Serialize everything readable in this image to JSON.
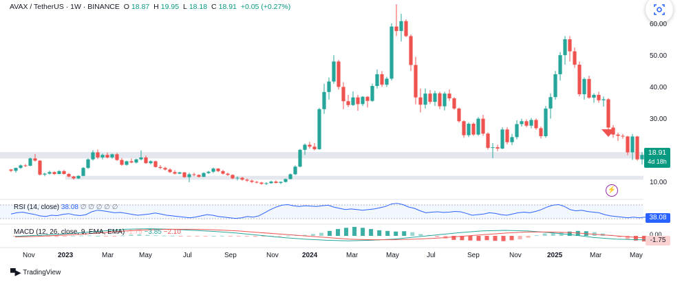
{
  "legend": {
    "symbol": "AVAX / TetherUS · 1W · BINANCE",
    "open_label": "O",
    "open": "18.87",
    "high_label": "H",
    "high": "19.95",
    "low_label": "L",
    "low": "18.18",
    "close_label": "C",
    "close": "18.91",
    "change": "+0.05 (+0.27%)"
  },
  "price_axis": [
    "60.00",
    "50.00",
    "40.00",
    "30.00",
    "10.00"
  ],
  "last_price": {
    "value": "18.91",
    "countdown": "4d 18h"
  },
  "rsi": {
    "title": "RSI (14, close)",
    "value": "38.08",
    "extra": "∅ ∅ ∅ ∅ ∅",
    "tag": "38.08"
  },
  "macd": {
    "title": "MACD (12, 26, close, 9, EMA, EMA)",
    "hist": "-1.75",
    "macd": "−3.85",
    "signal": "−2.10",
    "tag": "-1.75",
    "axis": "0.00"
  },
  "time_axis": [
    "Nov",
    "2023",
    "Mar",
    "May",
    "Jul",
    "Sep",
    "Nov",
    "2024",
    "Mar",
    "May",
    "Jul",
    "Sep",
    "Nov",
    "2025",
    "Mar",
    "May"
  ],
  "branding": "TradingView",
  "colors": {
    "up": "#26a69a",
    "down": "#ef5350",
    "rsi": "#2962ff",
    "zone": "#e0e3eb",
    "arrow": "#ef5350"
  },
  "chart_data": {
    "type": "candlestick",
    "symbol": "AVAX / TetherUS",
    "interval": "1W",
    "ylim": [
      5,
      67
    ],
    "support_zone": [
      17.5,
      19.5
    ],
    "lower_zone": [
      10.8,
      12.0
    ],
    "weeks": [
      [
        14.0,
        14.2,
        13.2,
        13.6
      ],
      [
        13.6,
        14.6,
        13.0,
        14.5
      ],
      [
        14.5,
        15.6,
        14.2,
        15.3
      ],
      [
        15.3,
        15.7,
        14.8,
        15.2
      ],
      [
        15.2,
        17.8,
        15.0,
        17.5
      ],
      [
        17.5,
        18.9,
        16.5,
        16.8
      ],
      [
        16.8,
        17.0,
        12.1,
        12.4
      ],
      [
        12.4,
        13.0,
        11.9,
        12.7
      ],
      [
        12.7,
        13.6,
        12.4,
        13.2
      ],
      [
        13.2,
        13.4,
        12.3,
        12.6
      ],
      [
        12.6,
        13.8,
        12.5,
        13.5
      ],
      [
        13.5,
        13.9,
        12.4,
        12.6
      ],
      [
        12.6,
        12.9,
        11.5,
        11.8
      ],
      [
        11.8,
        12.0,
        10.8,
        11.2
      ],
      [
        11.2,
        12.2,
        11.0,
        12.0
      ],
      [
        12.0,
        14.8,
        11.9,
        14.5
      ],
      [
        14.5,
        17.5,
        14.2,
        17.2
      ],
      [
        17.2,
        20.1,
        16.8,
        19.4
      ],
      [
        19.4,
        20.3,
        17.3,
        17.8
      ],
      [
        17.8,
        19.0,
        17.2,
        18.6
      ],
      [
        18.6,
        19.3,
        17.5,
        17.8
      ],
      [
        17.8,
        19.0,
        17.4,
        18.8
      ],
      [
        18.8,
        19.2,
        16.7,
        17.0
      ],
      [
        17.0,
        17.6,
        15.2,
        15.5
      ],
      [
        15.5,
        16.8,
        15.2,
        16.6
      ],
      [
        16.6,
        17.5,
        16.0,
        16.2
      ],
      [
        16.2,
        17.4,
        15.9,
        17.2
      ],
      [
        17.2,
        20.0,
        16.9,
        17.8
      ],
      [
        17.8,
        18.4,
        15.8,
        16.0
      ],
      [
        16.0,
        16.9,
        15.6,
        16.6
      ],
      [
        16.6,
        16.8,
        14.6,
        14.8
      ],
      [
        14.8,
        15.4,
        14.1,
        14.5
      ],
      [
        14.5,
        14.9,
        13.7,
        14.0
      ],
      [
        14.0,
        14.4,
        12.9,
        13.2
      ],
      [
        13.2,
        13.8,
        12.4,
        12.7
      ],
      [
        12.7,
        13.3,
        12.5,
        13.1
      ],
      [
        13.1,
        13.2,
        11.4,
        11.6
      ],
      [
        11.6,
        13.0,
        10.0,
        12.5
      ],
      [
        12.5,
        13.0,
        11.9,
        12.3
      ],
      [
        12.3,
        12.5,
        11.5,
        11.7
      ],
      [
        11.7,
        13.1,
        11.6,
        12.9
      ],
      [
        12.9,
        13.6,
        12.6,
        13.3
      ],
      [
        13.3,
        14.6,
        12.9,
        14.3
      ],
      [
        14.3,
        14.4,
        13.2,
        13.5
      ],
      [
        13.5,
        13.9,
        12.4,
        12.7
      ],
      [
        12.7,
        13.0,
        12.0,
        12.3
      ],
      [
        12.3,
        12.5,
        11.0,
        11.2
      ],
      [
        11.2,
        11.8,
        10.6,
        11.4
      ],
      [
        11.4,
        11.7,
        10.5,
        10.8
      ],
      [
        10.8,
        11.2,
        10.1,
        10.5
      ],
      [
        10.5,
        10.8,
        9.7,
        10.1
      ],
      [
        10.1,
        10.4,
        9.6,
        9.9
      ],
      [
        9.9,
        10.1,
        9.2,
        9.5
      ],
      [
        9.5,
        10.0,
        9.1,
        9.7
      ],
      [
        9.7,
        10.5,
        9.5,
        10.2
      ],
      [
        10.2,
        10.6,
        9.6,
        9.8
      ],
      [
        9.8,
        10.3,
        9.4,
        10.1
      ],
      [
        10.1,
        11.2,
        9.9,
        11.0
      ],
      [
        11.0,
        12.8,
        10.9,
        12.5
      ],
      [
        12.5,
        15.3,
        12.3,
        14.9
      ],
      [
        14.9,
        20.5,
        14.7,
        20.2
      ],
      [
        20.2,
        22.2,
        18.6,
        21.8
      ],
      [
        21.8,
        22.7,
        20.6,
        21.2
      ],
      [
        21.2,
        22.3,
        20.0,
        20.4
      ],
      [
        20.4,
        33.4,
        20.2,
        33.0
      ],
      [
        33.0,
        41.0,
        31.5,
        38.4
      ],
      [
        38.4,
        43.0,
        36.0,
        41.7
      ],
      [
        41.7,
        50.0,
        41.0,
        48.0
      ],
      [
        48.0,
        48.5,
        39.2,
        40.0
      ],
      [
        40.0,
        41.5,
        33.0,
        35.5
      ],
      [
        35.5,
        37.5,
        33.6,
        34.3
      ],
      [
        34.3,
        38.6,
        34.0,
        36.7
      ],
      [
        36.7,
        37.5,
        32.5,
        34.6
      ],
      [
        34.6,
        37.1,
        34.0,
        36.9
      ],
      [
        36.9,
        37.1,
        33.5,
        35.6
      ],
      [
        35.6,
        41.0,
        35.3,
        40.3
      ],
      [
        40.3,
        45.5,
        39.5,
        44.0
      ],
      [
        44.0,
        45.0,
        40.0,
        40.7
      ],
      [
        40.7,
        43.2,
        40.0,
        42.6
      ],
      [
        42.6,
        60.0,
        42.0,
        59.0
      ],
      [
        59.0,
        66.0,
        56.0,
        57.6
      ],
      [
        57.6,
        63.0,
        54.3,
        60.7
      ],
      [
        60.7,
        61.3,
        55.7,
        56.0
      ],
      [
        56.0,
        56.5,
        45.0,
        46.9
      ],
      [
        46.9,
        49.5,
        34.5,
        36.7
      ],
      [
        36.7,
        39.5,
        32.0,
        34.4
      ],
      [
        34.4,
        39.5,
        33.2,
        37.9
      ],
      [
        37.9,
        39.0,
        34.6,
        35.3
      ],
      [
        35.3,
        38.8,
        34.0,
        38.0
      ],
      [
        38.0,
        38.5,
        33.0,
        33.9
      ],
      [
        33.9,
        38.5,
        32.6,
        37.9
      ],
      [
        37.9,
        39.2,
        35.6,
        36.4
      ],
      [
        36.4,
        36.8,
        32.8,
        33.2
      ],
      [
        33.2,
        33.5,
        28.8,
        29.2
      ],
      [
        29.2,
        29.5,
        24.0,
        24.8
      ],
      [
        24.8,
        28.8,
        24.2,
        28.4
      ],
      [
        28.4,
        28.8,
        24.6,
        25.0
      ],
      [
        25.0,
        30.5,
        24.6,
        30.0
      ],
      [
        30.0,
        31.2,
        24.6,
        25.3
      ],
      [
        25.3,
        25.7,
        20.3,
        20.8
      ],
      [
        20.8,
        22.3,
        17.6,
        21.0
      ],
      [
        21.0,
        21.8,
        19.8,
        20.6
      ],
      [
        20.6,
        27.3,
        20.4,
        26.6
      ],
      [
        26.6,
        27.3,
        21.9,
        22.6
      ],
      [
        22.6,
        25.2,
        21.7,
        24.2
      ],
      [
        24.2,
        29.5,
        23.5,
        28.3
      ],
      [
        28.3,
        30.0,
        27.5,
        29.2
      ],
      [
        29.2,
        29.8,
        27.3,
        27.8
      ],
      [
        27.8,
        30.2,
        27.0,
        29.6
      ],
      [
        29.6,
        30.1,
        26.5,
        27.0
      ],
      [
        27.0,
        27.5,
        23.8,
        24.5
      ],
      [
        24.5,
        34.0,
        24.0,
        33.2
      ],
      [
        33.2,
        38.0,
        30.0,
        36.8
      ],
      [
        36.8,
        45.0,
        36.0,
        44.0
      ],
      [
        44.0,
        51.0,
        42.0,
        50.0
      ],
      [
        50.0,
        56.0,
        47.0,
        55.0
      ],
      [
        55.0,
        56.0,
        48.0,
        51.2
      ],
      [
        51.2,
        52.4,
        46.0,
        47.0
      ],
      [
        47.0,
        48.0,
        37.0,
        37.7
      ],
      [
        37.7,
        43.0,
        36.0,
        42.5
      ],
      [
        42.5,
        43.5,
        36.3,
        36.6
      ],
      [
        36.6,
        38.0,
        35.0,
        37.5
      ],
      [
        37.5,
        38.5,
        35.0,
        35.8
      ],
      [
        35.8,
        37.0,
        33.8,
        36.1
      ],
      [
        36.1,
        36.5,
        25.0,
        27.2
      ],
      [
        27.2,
        28.0,
        24.0,
        25.0
      ],
      [
        25.0,
        25.6,
        23.0,
        24.6
      ],
      [
        24.6,
        25.2,
        23.7,
        24.4
      ],
      [
        24.4,
        24.6,
        18.5,
        19.4
      ],
      [
        19.4,
        25.2,
        17.0,
        24.4
      ],
      [
        24.4,
        24.6,
        16.8,
        17.2
      ],
      [
        17.2,
        19.5,
        15.6,
        18.6
      ],
      [
        18.6,
        19.5,
        17.8,
        19.2
      ],
      [
        19.2,
        20.3,
        18.3,
        18.5
      ],
      [
        18.87,
        19.95,
        18.18,
        18.91
      ]
    ],
    "rsi_values": [
      48,
      52,
      54,
      50,
      47,
      42,
      40,
      44,
      43,
      47,
      49,
      45,
      43,
      46,
      55,
      60,
      58,
      55,
      52,
      53,
      50,
      47,
      44,
      46,
      48,
      51,
      48,
      44,
      42,
      40,
      38,
      36,
      38,
      42,
      46,
      44,
      40,
      38,
      36,
      34,
      36,
      40,
      38,
      42,
      52,
      62,
      70,
      76,
      78,
      74,
      72,
      74,
      73,
      72,
      74,
      76,
      70,
      66,
      62,
      64,
      62,
      60,
      62,
      64,
      68,
      72,
      80,
      82,
      78,
      70,
      66,
      58,
      52,
      54,
      55,
      53,
      54,
      56,
      55,
      50,
      44,
      46,
      48,
      52,
      50,
      46,
      44,
      48,
      52,
      54,
      52,
      56,
      62,
      70,
      76,
      78,
      72,
      62,
      58,
      60,
      56,
      54,
      52,
      46,
      42,
      40,
      38,
      36,
      38,
      36,
      38,
      38,
      38
    ],
    "macd_hist": [
      -0.2,
      0.1,
      0.2,
      0.1,
      -0.2,
      -0.3,
      -0.1,
      0.05,
      0.1,
      0.15,
      0.0,
      -0.1,
      -0.15,
      0.1,
      0.4,
      0.5,
      0.3,
      0.2,
      0.1,
      0.05,
      -0.1,
      -0.2,
      -0.15,
      -0.05,
      0.0,
      0.05,
      -0.1,
      -0.2,
      -0.25,
      -0.3,
      -0.25,
      -0.2,
      -0.1,
      0.05,
      0.2,
      0.3,
      0.6,
      1.0,
      1.6,
      2.2,
      2.6,
      2.9,
      2.6,
      2.2,
      1.8,
      1.6,
      1.4,
      1.5,
      1.2,
      0.6,
      0.2,
      -0.4,
      -0.9,
      -1.3,
      -1.4,
      -1.5,
      -1.6,
      -1.4,
      -1.6,
      -1.7,
      -1.4,
      -1.1,
      -0.6,
      0.2,
      0.8,
      1.0,
      1.2,
      1.4,
      1.6,
      1.5,
      1.2,
      0.8,
      0.3,
      -0.4,
      -1.0,
      -1.5,
      -1.8,
      -1.9,
      -1.75
    ],
    "macd_line": [
      -0.5,
      0.5,
      1.5,
      3,
      4.5,
      6,
      6.5,
      6,
      5,
      4,
      2.5,
      0.5,
      -1.5,
      -3,
      -4,
      -4.5,
      -4,
      -3,
      -1,
      1,
      3,
      4.5,
      5,
      4.5,
      3,
      1,
      -1.5,
      -3,
      -3.5,
      -3.85
    ],
    "signal_line": [
      -1,
      -0.5,
      0.5,
      1.5,
      3,
      4.5,
      5.5,
      6,
      6,
      5.5,
      4.5,
      3,
      1.5,
      0,
      -1.5,
      -3,
      -3.5,
      -3.5,
      -3,
      -2,
      -0.5,
      1,
      2.5,
      3.5,
      3.5,
      3,
      1.5,
      0,
      -1.5,
      -2.1
    ]
  }
}
